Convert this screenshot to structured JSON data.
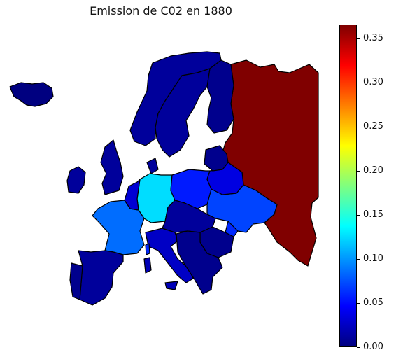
{
  "title": "Emission de C02 en 1880",
  "colorbar": {
    "colormap": "jet",
    "min": 0.0,
    "max": 0.366,
    "ticks": [
      "0.00",
      "0.05",
      "0.10",
      "0.15",
      "0.20",
      "0.25",
      "0.30",
      "0.35"
    ]
  },
  "chart_data": {
    "type": "choropleth",
    "title": "Emission de C02 en 1880",
    "value_range": [
      0.0,
      0.366
    ],
    "regions": [
      {
        "region": "Russia",
        "value": 0.366
      },
      {
        "region": "Germany",
        "value": 0.125
      },
      {
        "region": "France",
        "value": 0.085
      },
      {
        "region": "Ukraine",
        "value": 0.07
      },
      {
        "region": "Poland",
        "value": 0.055
      },
      {
        "region": "Belarus",
        "value": 0.035
      },
      {
        "region": "Italy",
        "value": 0.025
      },
      {
        "region": "Spain",
        "value": 0.01
      },
      {
        "region": "Portugal",
        "value": 0.005
      },
      {
        "region": "Norway",
        "value": 0.01
      },
      {
        "region": "Sweden",
        "value": 0.01
      },
      {
        "region": "Finland",
        "value": 0.005
      },
      {
        "region": "Iceland",
        "value": 0.0
      },
      {
        "region": "Ireland",
        "value": 0.01
      },
      {
        "region": "Benelux",
        "value": 0.03
      },
      {
        "region": "Austria-Hungary region",
        "value": 0.01
      },
      {
        "region": "Romania",
        "value": 0.005
      },
      {
        "region": "Balkans",
        "value": 0.005
      },
      {
        "region": "Moldova",
        "value": 0.06
      },
      {
        "region": "Baltics",
        "value": 0.005
      }
    ]
  }
}
